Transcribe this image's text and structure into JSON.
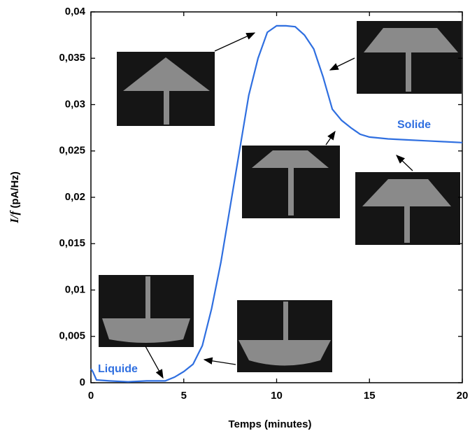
{
  "chart_data": {
    "type": "line",
    "xlabel": "Temps (minutes)",
    "ylabel_var": "I/f",
    "ylabel_unit": "(pA/Hz)",
    "annotations": [
      "Liquide",
      "Solide"
    ],
    "xlim": [
      0,
      20
    ],
    "xticks": [
      0,
      5,
      10,
      15,
      20
    ],
    "ylim": [
      0,
      0.04
    ],
    "yticks": [
      0,
      {
        "value": 0.005,
        "label": "0,005"
      },
      {
        "value": 0.01,
        "label": "0,01"
      },
      {
        "value": 0.015,
        "label": "0,015"
      },
      {
        "value": 0.02,
        "label": "0,02"
      },
      {
        "value": 0.025,
        "label": "0,025"
      },
      {
        "value": 0.03,
        "label": "0,03"
      },
      {
        "value": 0.035,
        "label": "0,035"
      },
      {
        "value": 0.04,
        "label": "0,04"
      }
    ],
    "color": "#2f6fe0",
    "x": [
      0,
      0.1,
      0.3,
      1,
      2,
      3,
      4,
      4.5,
      5,
      5.5,
      6,
      6.5,
      7,
      7.5,
      8,
      8.5,
      9,
      9.5,
      10,
      10.5,
      11,
      11.5,
      12,
      12.5,
      13,
      13.5,
      14,
      14.5,
      15,
      16,
      17,
      18,
      19,
      20
    ],
    "values": [
      0.0015,
      0.0012,
      0.0003,
      0.0002,
      0.0001,
      0.0002,
      0.0002,
      0.0006,
      0.0012,
      0.002,
      0.004,
      0.008,
      0.013,
      0.019,
      0.025,
      0.031,
      0.035,
      0.0378,
      0.0385,
      0.0385,
      0.0384,
      0.0375,
      0.036,
      0.033,
      0.0295,
      0.0283,
      0.0275,
      0.0268,
      0.0265,
      0.0263,
      0.0262,
      0.0261,
      0.026,
      0.0259
    ]
  }
}
